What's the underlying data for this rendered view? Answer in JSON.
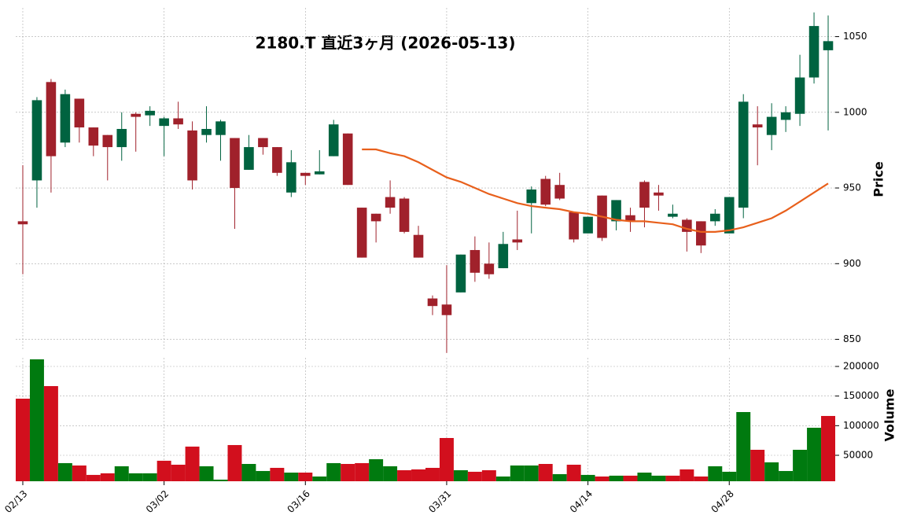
{
  "chart_data": {
    "type": "candlestick",
    "title": "2180.T  直近3ヶ月  (2026-05-13)",
    "categories": [
      "02/13",
      null,
      null,
      null,
      null,
      null,
      null,
      null,
      null,
      null,
      "03/02",
      null,
      null,
      null,
      null,
      null,
      null,
      null,
      null,
      null,
      "03/16",
      null,
      null,
      null,
      null,
      null,
      null,
      null,
      null,
      null,
      "03/31",
      null,
      null,
      null,
      null,
      null,
      null,
      null,
      null,
      null,
      "04/14",
      null,
      null,
      null,
      null,
      null,
      null,
      null,
      null,
      null,
      "04/28",
      null,
      null,
      null,
      null,
      null,
      null,
      null
    ],
    "open": [
      928,
      955,
      1020,
      980,
      1009,
      990,
      985,
      977,
      999,
      998,
      991,
      996,
      988,
      985,
      985,
      983,
      962,
      983,
      977,
      947,
      960,
      959,
      971,
      986,
      937,
      933,
      944,
      943,
      919,
      877,
      873,
      881,
      909,
      900,
      897,
      916,
      940,
      956,
      952,
      934,
      920,
      945,
      928,
      932,
      954,
      947,
      931,
      929,
      928,
      928,
      920,
      937,
      992,
      985,
      995,
      999,
      1023,
      1041
    ],
    "high": [
      965,
      1010,
      1022,
      1015,
      1009,
      990,
      985,
      1000,
      1000,
      1004,
      997,
      1007,
      994,
      1004,
      995,
      983,
      985,
      983,
      977,
      975,
      960,
      975,
      995,
      986,
      937,
      933,
      955,
      944,
      925,
      879,
      899,
      906,
      918,
      914,
      921,
      935,
      951,
      958,
      960,
      934,
      931,
      945,
      942,
      937,
      955,
      952,
      939,
      930,
      928,
      936,
      944,
      1012,
      1004,
      1006,
      1004,
      1038,
      1066,
      1064
    ],
    "low": [
      893,
      937,
      947,
      977,
      980,
      971,
      955,
      968,
      974,
      991,
      971,
      989,
      949,
      980,
      968,
      923,
      962,
      972,
      958,
      944,
      952,
      959,
      971,
      952,
      904,
      914,
      933,
      920,
      904,
      866,
      841,
      881,
      888,
      890,
      897,
      909,
      920,
      938,
      942,
      914,
      920,
      915,
      922,
      921,
      924,
      935,
      930,
      908,
      907,
      925,
      920,
      930,
      965,
      975,
      987,
      991,
      1019,
      988
    ],
    "close": [
      926,
      1008,
      971,
      1012,
      990,
      978,
      977,
      989,
      997,
      1001,
      996,
      992,
      955,
      989,
      994,
      950,
      977,
      977,
      960,
      967,
      958,
      961,
      992,
      952,
      904,
      928,
      937,
      921,
      904,
      872,
      866,
      906,
      894,
      893,
      913,
      914,
      949,
      939,
      943,
      916,
      931,
      917,
      942,
      928,
      937,
      945,
      933,
      921,
      912,
      933,
      944,
      1007,
      990,
      997,
      1000,
      1023,
      1057,
      1047
    ],
    "ylim": [
      843,
      1069
    ],
    "yticks": [
      850,
      900,
      950,
      1000,
      1050
    ],
    "ylabel": "Price",
    "up_color": "#006340",
    "down_color": "#a0212b",
    "grid": true,
    "moving_average": {
      "color": "#e8601c",
      "values": [
        null,
        null,
        null,
        null,
        null,
        null,
        null,
        null,
        null,
        null,
        null,
        null,
        null,
        null,
        null,
        null,
        null,
        null,
        null,
        null,
        null,
        null,
        null,
        null,
        975.5,
        975.5,
        973,
        971,
        967,
        962,
        957,
        954,
        950,
        946,
        943,
        940,
        938,
        937,
        936,
        934,
        933,
        931,
        929,
        928,
        928,
        927,
        926,
        923,
        921,
        921,
        922,
        924,
        927,
        930,
        935,
        941,
        947,
        953
      ]
    },
    "volume": {
      "values": [
        145600,
        212000,
        166800,
        36800,
        32800,
        16900,
        19600,
        31500,
        19600,
        19600,
        40800,
        34100,
        64700,
        31500,
        8900,
        67300,
        35400,
        23500,
        28800,
        20800,
        20800,
        14200,
        36800,
        35400,
        36800,
        43400,
        31500,
        24800,
        26200,
        28800,
        79200,
        24800,
        22200,
        24800,
        14200,
        32800,
        32800,
        35400,
        18200,
        34100,
        16900,
        14200,
        15600,
        15600,
        20800,
        15600,
        15600,
        26200,
        14200,
        31500,
        22200,
        123000,
        59300,
        38100,
        23500,
        59300,
        96500,
        116400
      ],
      "ylim": [
        6200,
        214600
      ],
      "yticks": [
        50000,
        100000,
        150000,
        200000
      ],
      "ylabel": "Volume",
      "up_color": "#007a0f",
      "down_color": "#d20f1d"
    }
  }
}
